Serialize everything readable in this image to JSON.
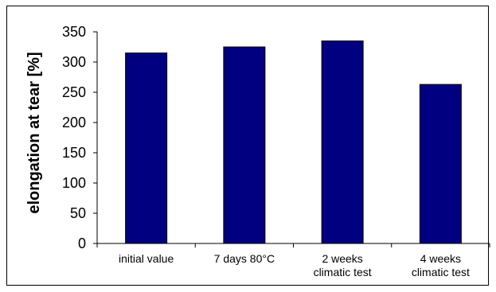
{
  "chart_data": {
    "type": "bar",
    "categories": [
      [
        "initial value"
      ],
      [
        "7 days 80°C"
      ],
      [
        "2 weeks",
        "climatic test"
      ],
      [
        "4 weeks",
        "climatic test"
      ]
    ],
    "values": [
      315,
      325,
      335,
      263
    ],
    "ylabel": "elongation at tear [%]",
    "ylim": [
      0,
      350
    ],
    "yticks": [
      0,
      50,
      100,
      150,
      200,
      250,
      300,
      350
    ],
    "grid": false,
    "legend": false,
    "bar_color": "#000080"
  }
}
